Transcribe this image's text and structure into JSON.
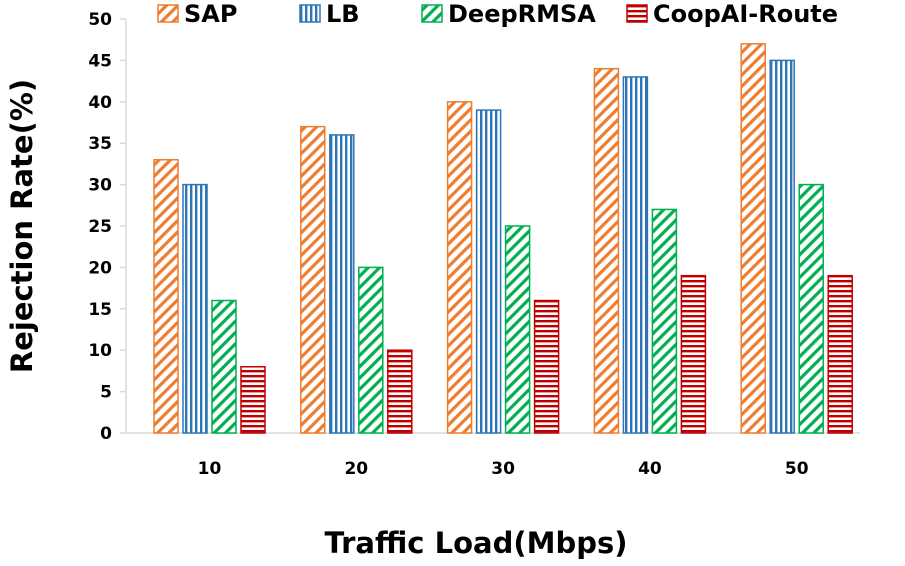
{
  "chart_data": {
    "type": "bar",
    "title": "",
    "xlabel": "Traffic Load(Mbps)",
    "ylabel": "Rejection Rate(%)",
    "categories": [
      "10",
      "20",
      "30",
      "40",
      "50"
    ],
    "ylim": [
      0,
      50
    ],
    "yticks": [
      "0",
      "5",
      "10",
      "15",
      "20",
      "25",
      "30",
      "35",
      "40",
      "45",
      "50"
    ],
    "grid": false,
    "legend_position": "top",
    "series": [
      {
        "name": "SAP",
        "values": [
          33,
          37,
          40,
          44,
          47
        ],
        "color": "#ED7D31",
        "pattern": "diagonal-stripes"
      },
      {
        "name": "LB",
        "values": [
          30,
          36,
          39,
          43,
          45
        ],
        "color": "#2E75B6",
        "pattern": "vertical-stripes"
      },
      {
        "name": "DeepRMSA",
        "values": [
          16,
          20,
          25,
          27,
          30
        ],
        "color": "#00B050",
        "pattern": "diagonal-stripes"
      },
      {
        "name": "CoopAI-Route",
        "values": [
          8,
          10,
          16,
          19,
          19
        ],
        "color": "#C00000",
        "pattern": "horizontal-stripes"
      }
    ]
  }
}
